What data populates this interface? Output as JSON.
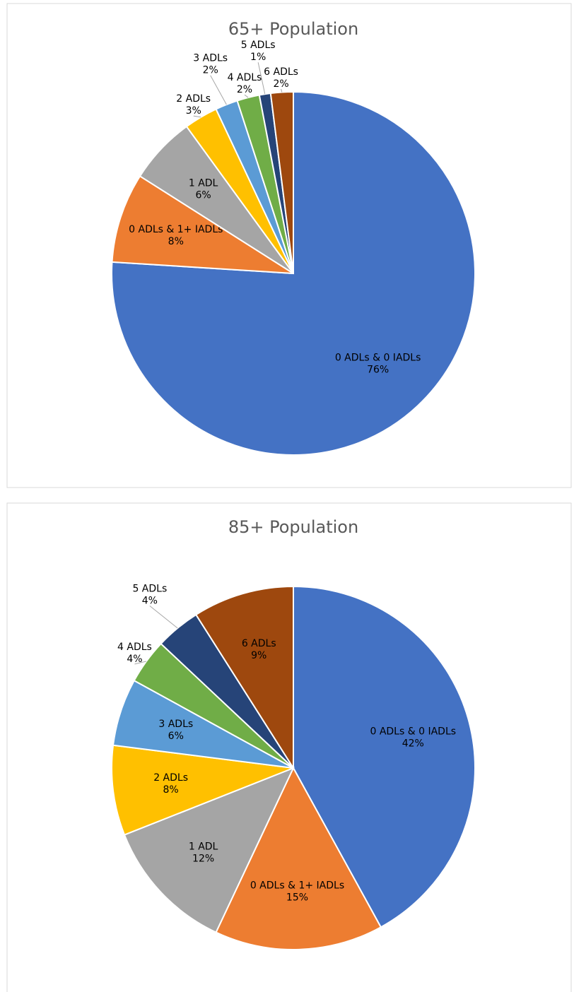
{
  "chart_data": [
    {
      "type": "pie",
      "title": "65+ Population",
      "categories": [
        "0 ADLs & 0 IADLs",
        "0 ADLs & 1+ IADLs",
        "1 ADL",
        "2 ADLs",
        "3 ADLs",
        "4 ADLs",
        "5 ADLs",
        "6 ADLs"
      ],
      "values": [
        76,
        8,
        6,
        3,
        2,
        2,
        1,
        2
      ],
      "value_labels": [
        "76%",
        "8%",
        "6%",
        "3%",
        "2%",
        "2%",
        "1%",
        "2%"
      ],
      "colors": [
        "#4472c4",
        "#ed7d31",
        "#a5a5a5",
        "#ffc000",
        "#5b9bd5",
        "#70ad47",
        "#264478",
        "#9e480e"
      ]
    },
    {
      "type": "pie",
      "title": "85+ Population",
      "categories": [
        "0 ADLs & 0 IADLs",
        "0 ADLs & 1+ IADLs",
        "1 ADL",
        "2 ADLs",
        "3 ADLs",
        "4 ADLs",
        "5 ADLs",
        "6 ADLs"
      ],
      "values": [
        42,
        15,
        12,
        8,
        6,
        4,
        4,
        9
      ],
      "value_labels": [
        "42%",
        "15%",
        "12%",
        "8%",
        "6%",
        "4%",
        "4%",
        "9%"
      ],
      "colors": [
        "#4472c4",
        "#ed7d31",
        "#a5a5a5",
        "#ffc000",
        "#5b9bd5",
        "#70ad47",
        "#264478",
        "#9e480e"
      ]
    }
  ]
}
